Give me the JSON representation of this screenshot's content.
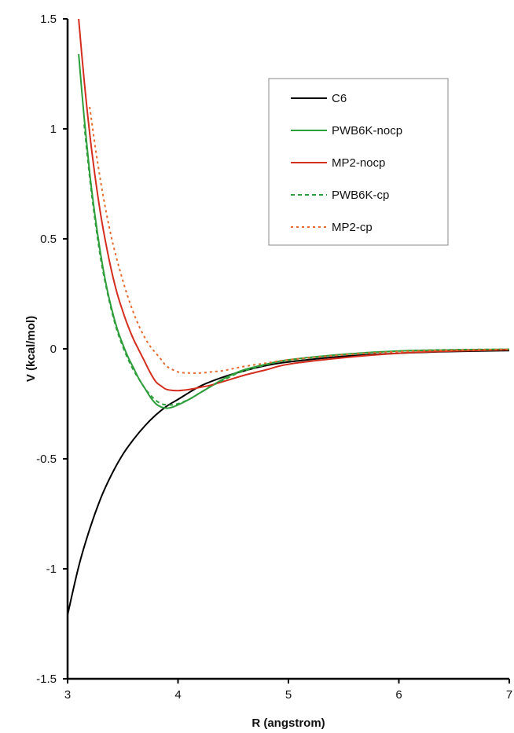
{
  "chart_data": {
    "type": "line",
    "title": "",
    "xlabel": "R (angstrom)",
    "ylabel": "V (kcal/mol)",
    "xlim": [
      3,
      7
    ],
    "ylim": [
      -1.5,
      1.5
    ],
    "xticks": [
      3,
      4,
      5,
      6,
      7
    ],
    "xtick_labels": [
      "3",
      "4",
      "5",
      "6",
      "7"
    ],
    "yticks": [
      1.5,
      1,
      0.5,
      0,
      -0.5,
      -1,
      -1.5
    ],
    "ytick_labels": [
      "1.5",
      "1",
      "0.5",
      "0",
      "-0.5",
      "-1",
      "-1.5"
    ],
    "grid": false,
    "legend_position": "upper-right",
    "series": [
      {
        "name": "C6",
        "color": "#000000",
        "dash": "solid",
        "x": [
          3.0,
          3.1,
          3.2,
          3.3,
          3.4,
          3.5,
          3.6,
          3.7,
          3.8,
          3.9,
          4.0,
          4.2,
          4.4,
          4.6,
          4.8,
          5.0,
          5.5,
          6.0,
          6.5,
          7.0
        ],
        "y": [
          -1.21,
          -0.99,
          -0.82,
          -0.68,
          -0.57,
          -0.48,
          -0.41,
          -0.35,
          -0.3,
          -0.26,
          -0.23,
          -0.17,
          -0.13,
          -0.1,
          -0.076,
          -0.06,
          -0.034,
          -0.02,
          -0.012,
          -0.008
        ]
      },
      {
        "name": "PWB6K-nocp",
        "color": "#2e9e3a",
        "dash": "solid",
        "x": [
          3.1,
          3.15,
          3.2,
          3.25,
          3.3,
          3.35,
          3.4,
          3.45,
          3.5,
          3.55,
          3.6,
          3.65,
          3.7,
          3.75,
          3.8,
          3.85,
          3.9,
          3.95,
          4.0,
          4.1,
          4.2,
          4.3,
          4.4,
          4.5,
          4.6,
          4.8,
          5.0,
          5.5,
          6.0,
          6.5,
          7.0
        ],
        "y": [
          1.34,
          1.05,
          0.8,
          0.6,
          0.43,
          0.29,
          0.18,
          0.09,
          0.02,
          -0.04,
          -0.09,
          -0.14,
          -0.18,
          -0.22,
          -0.25,
          -0.265,
          -0.27,
          -0.265,
          -0.255,
          -0.23,
          -0.2,
          -0.17,
          -0.14,
          -0.115,
          -0.095,
          -0.07,
          -0.05,
          -0.025,
          -0.01,
          -0.005,
          -0.002
        ]
      },
      {
        "name": "MP2-nocp",
        "color": "#d42e1e",
        "dash": "solid",
        "x": [
          3.1,
          3.15,
          3.2,
          3.25,
          3.3,
          3.35,
          3.4,
          3.45,
          3.5,
          3.55,
          3.6,
          3.65,
          3.7,
          3.75,
          3.8,
          3.85,
          3.9,
          4.0,
          4.1,
          4.2,
          4.3,
          4.4,
          4.5,
          4.6,
          4.8,
          5.0,
          5.5,
          6.0,
          6.5,
          7.0
        ],
        "y": [
          1.5,
          1.22,
          0.98,
          0.78,
          0.61,
          0.47,
          0.35,
          0.25,
          0.17,
          0.1,
          0.04,
          -0.01,
          -0.06,
          -0.11,
          -0.15,
          -0.17,
          -0.185,
          -0.19,
          -0.185,
          -0.175,
          -0.165,
          -0.15,
          -0.135,
          -0.12,
          -0.095,
          -0.07,
          -0.04,
          -0.02,
          -0.01,
          -0.004
        ]
      },
      {
        "name": "PWB6K-cp",
        "color": "#2e9e3a",
        "dash": "dashed",
        "x": [
          3.15,
          3.2,
          3.25,
          3.3,
          3.35,
          3.4,
          3.45,
          3.5,
          3.55,
          3.6,
          3.65,
          3.7,
          3.75,
          3.8,
          3.85,
          3.9,
          3.95,
          4.0,
          4.1,
          4.2,
          4.3,
          4.4,
          4.5,
          4.6,
          4.8,
          5.0,
          5.5,
          6.0,
          6.5,
          7.0
        ],
        "y": [
          1.02,
          0.78,
          0.58,
          0.41,
          0.28,
          0.17,
          0.08,
          0.01,
          -0.05,
          -0.1,
          -0.14,
          -0.18,
          -0.21,
          -0.235,
          -0.25,
          -0.255,
          -0.255,
          -0.25,
          -0.23,
          -0.2,
          -0.17,
          -0.145,
          -0.12,
          -0.1,
          -0.072,
          -0.052,
          -0.025,
          -0.01,
          -0.004,
          -0.002
        ]
      },
      {
        "name": "MP2-cp",
        "color": "#e86a2c",
        "dash": "dotted",
        "x": [
          3.2,
          3.25,
          3.3,
          3.35,
          3.4,
          3.45,
          3.5,
          3.55,
          3.6,
          3.65,
          3.7,
          3.75,
          3.8,
          3.85,
          3.9,
          4.0,
          4.1,
          4.2,
          4.3,
          4.4,
          4.5,
          4.6,
          4.8,
          5.0,
          5.5,
          6.0,
          6.5,
          7.0
        ],
        "y": [
          1.1,
          0.92,
          0.76,
          0.62,
          0.5,
          0.4,
          0.31,
          0.23,
          0.16,
          0.1,
          0.05,
          0.01,
          -0.02,
          -0.05,
          -0.08,
          -0.105,
          -0.11,
          -0.11,
          -0.105,
          -0.1,
          -0.09,
          -0.08,
          -0.065,
          -0.05,
          -0.027,
          -0.013,
          -0.006,
          -0.003
        ]
      }
    ]
  }
}
